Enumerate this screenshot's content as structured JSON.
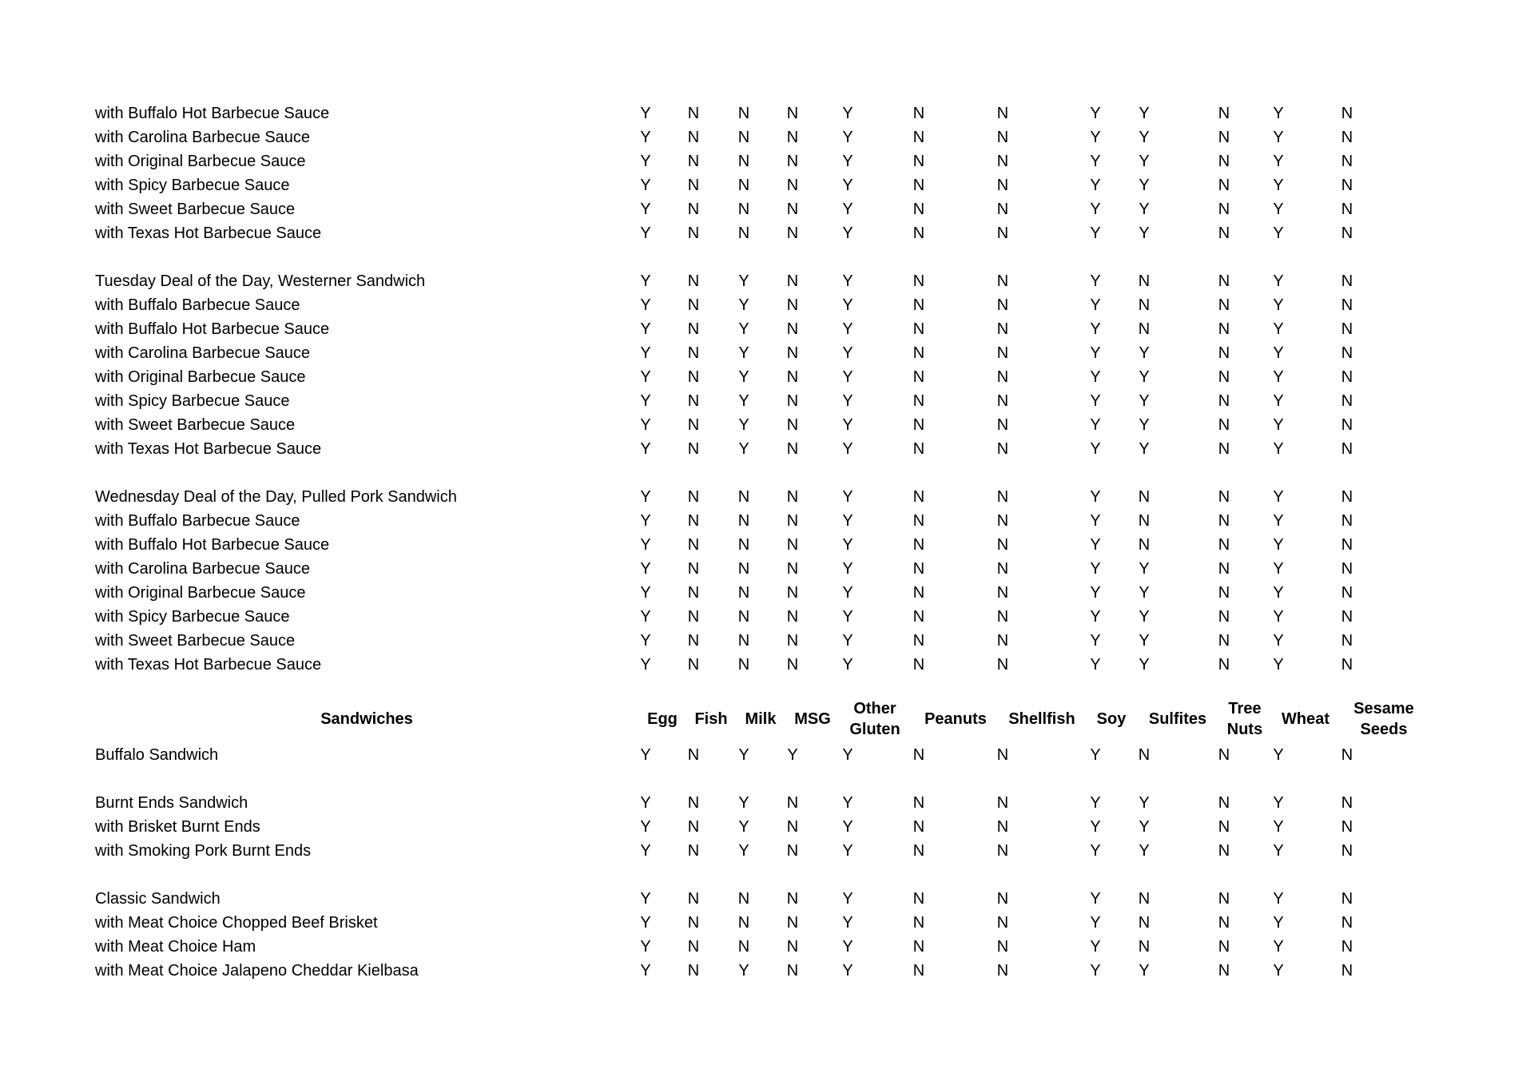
{
  "page": {
    "background_color": "#ffffff",
    "text_color": "#000000"
  },
  "table": {
    "header": {
      "row_label": "Sandwiches",
      "columns": [
        "Egg",
        "Fish",
        "Milk",
        "MSG",
        "Other Gluten",
        "Peanuts",
        "Shellfish",
        "Soy",
        "Sulfites",
        "Tree Nuts",
        "Wheat",
        "Sesame Seeds"
      ]
    },
    "sections_before_header": [
      {
        "rows": [
          {
            "label": "with Buffalo Hot Barbecue Sauce",
            "values": [
              "Y",
              "N",
              "N",
              "N",
              "Y",
              "N",
              "N",
              "Y",
              "Y",
              "N",
              "Y",
              "N"
            ]
          },
          {
            "label": "with Carolina Barbecue Sauce",
            "values": [
              "Y",
              "N",
              "N",
              "N",
              "Y",
              "N",
              "N",
              "Y",
              "Y",
              "N",
              "Y",
              "N"
            ]
          },
          {
            "label": "with Original Barbecue Sauce",
            "values": [
              "Y",
              "N",
              "N",
              "N",
              "Y",
              "N",
              "N",
              "Y",
              "Y",
              "N",
              "Y",
              "N"
            ]
          },
          {
            "label": "with Spicy Barbecue Sauce",
            "values": [
              "Y",
              "N",
              "N",
              "N",
              "Y",
              "N",
              "N",
              "Y",
              "Y",
              "N",
              "Y",
              "N"
            ]
          },
          {
            "label": "with Sweet Barbecue Sauce",
            "values": [
              "Y",
              "N",
              "N",
              "N",
              "Y",
              "N",
              "N",
              "Y",
              "Y",
              "N",
              "Y",
              "N"
            ]
          },
          {
            "label": "with Texas Hot Barbecue Sauce",
            "values": [
              "Y",
              "N",
              "N",
              "N",
              "Y",
              "N",
              "N",
              "Y",
              "Y",
              "N",
              "Y",
              "N"
            ]
          }
        ]
      },
      {
        "rows": [
          {
            "label": "Tuesday Deal of the Day, Westerner Sandwich",
            "values": [
              "Y",
              "N",
              "Y",
              "N",
              "Y",
              "N",
              "N",
              "Y",
              "N",
              "N",
              "Y",
              "N"
            ]
          },
          {
            "label": "with Buffalo Barbecue Sauce",
            "values": [
              "Y",
              "N",
              "Y",
              "N",
              "Y",
              "N",
              "N",
              "Y",
              "N",
              "N",
              "Y",
              "N"
            ]
          },
          {
            "label": "with Buffalo Hot Barbecue Sauce",
            "values": [
              "Y",
              "N",
              "Y",
              "N",
              "Y",
              "N",
              "N",
              "Y",
              "N",
              "N",
              "Y",
              "N"
            ]
          },
          {
            "label": "with Carolina Barbecue Sauce",
            "values": [
              "Y",
              "N",
              "Y",
              "N",
              "Y",
              "N",
              "N",
              "Y",
              "Y",
              "N",
              "Y",
              "N"
            ]
          },
          {
            "label": "with Original Barbecue Sauce",
            "values": [
              "Y",
              "N",
              "Y",
              "N",
              "Y",
              "N",
              "N",
              "Y",
              "Y",
              "N",
              "Y",
              "N"
            ]
          },
          {
            "label": "with Spicy Barbecue Sauce",
            "values": [
              "Y",
              "N",
              "Y",
              "N",
              "Y",
              "N",
              "N",
              "Y",
              "Y",
              "N",
              "Y",
              "N"
            ]
          },
          {
            "label": "with Sweet Barbecue Sauce",
            "values": [
              "Y",
              "N",
              "Y",
              "N",
              "Y",
              "N",
              "N",
              "Y",
              "Y",
              "N",
              "Y",
              "N"
            ]
          },
          {
            "label": "with Texas Hot Barbecue Sauce",
            "values": [
              "Y",
              "N",
              "Y",
              "N",
              "Y",
              "N",
              "N",
              "Y",
              "Y",
              "N",
              "Y",
              "N"
            ]
          }
        ]
      },
      {
        "rows": [
          {
            "label": "Wednesday Deal of the Day, Pulled Pork Sandwich",
            "values": [
              "Y",
              "N",
              "N",
              "N",
              "Y",
              "N",
              "N",
              "Y",
              "N",
              "N",
              "Y",
              "N"
            ]
          },
          {
            "label": "with Buffalo Barbecue Sauce",
            "values": [
              "Y",
              "N",
              "N",
              "N",
              "Y",
              "N",
              "N",
              "Y",
              "N",
              "N",
              "Y",
              "N"
            ]
          },
          {
            "label": "with Buffalo Hot Barbecue Sauce",
            "values": [
              "Y",
              "N",
              "N",
              "N",
              "Y",
              "N",
              "N",
              "Y",
              "N",
              "N",
              "Y",
              "N"
            ]
          },
          {
            "label": "with Carolina Barbecue Sauce",
            "values": [
              "Y",
              "N",
              "N",
              "N",
              "Y",
              "N",
              "N",
              "Y",
              "Y",
              "N",
              "Y",
              "N"
            ]
          },
          {
            "label": "with Original Barbecue Sauce",
            "values": [
              "Y",
              "N",
              "N",
              "N",
              "Y",
              "N",
              "N",
              "Y",
              "Y",
              "N",
              "Y",
              "N"
            ]
          },
          {
            "label": "with Spicy Barbecue Sauce",
            "values": [
              "Y",
              "N",
              "N",
              "N",
              "Y",
              "N",
              "N",
              "Y",
              "Y",
              "N",
              "Y",
              "N"
            ]
          },
          {
            "label": "with Sweet Barbecue Sauce",
            "values": [
              "Y",
              "N",
              "N",
              "N",
              "Y",
              "N",
              "N",
              "Y",
              "Y",
              "N",
              "Y",
              "N"
            ]
          },
          {
            "label": "with Texas Hot Barbecue Sauce",
            "values": [
              "Y",
              "N",
              "N",
              "N",
              "Y",
              "N",
              "N",
              "Y",
              "Y",
              "N",
              "Y",
              "N"
            ]
          }
        ]
      }
    ],
    "sections_after_header": [
      {
        "rows": [
          {
            "label": "Buffalo Sandwich",
            "values": [
              "Y",
              "N",
              "Y",
              "Y",
              "Y",
              "N",
              "N",
              "Y",
              "N",
              "N",
              "Y",
              "N"
            ]
          }
        ]
      },
      {
        "rows": [
          {
            "label": "Burnt Ends Sandwich",
            "values": [
              "Y",
              "N",
              "Y",
              "N",
              "Y",
              "N",
              "N",
              "Y",
              "Y",
              "N",
              "Y",
              "N"
            ]
          },
          {
            "label": "with Brisket Burnt Ends",
            "values": [
              "Y",
              "N",
              "Y",
              "N",
              "Y",
              "N",
              "N",
              "Y",
              "Y",
              "N",
              "Y",
              "N"
            ]
          },
          {
            "label": "with Smoking Pork Burnt Ends",
            "values": [
              "Y",
              "N",
              "Y",
              "N",
              "Y",
              "N",
              "N",
              "Y",
              "Y",
              "N",
              "Y",
              "N"
            ]
          }
        ]
      },
      {
        "rows": [
          {
            "label": "Classic Sandwich",
            "values": [
              "Y",
              "N",
              "N",
              "N",
              "Y",
              "N",
              "N",
              "Y",
              "N",
              "N",
              "Y",
              "N"
            ]
          },
          {
            "label": "with Meat Choice Chopped Beef Brisket",
            "values": [
              "Y",
              "N",
              "N",
              "N",
              "Y",
              "N",
              "N",
              "Y",
              "N",
              "N",
              "Y",
              "N"
            ]
          },
          {
            "label": "with Meat Choice Ham",
            "values": [
              "Y",
              "N",
              "N",
              "N",
              "Y",
              "N",
              "N",
              "Y",
              "N",
              "N",
              "Y",
              "N"
            ]
          },
          {
            "label": "with Meat Choice Jalapeno Cheddar Kielbasa",
            "values": [
              "Y",
              "N",
              "Y",
              "N",
              "Y",
              "N",
              "N",
              "Y",
              "Y",
              "N",
              "Y",
              "N"
            ]
          }
        ]
      }
    ]
  }
}
